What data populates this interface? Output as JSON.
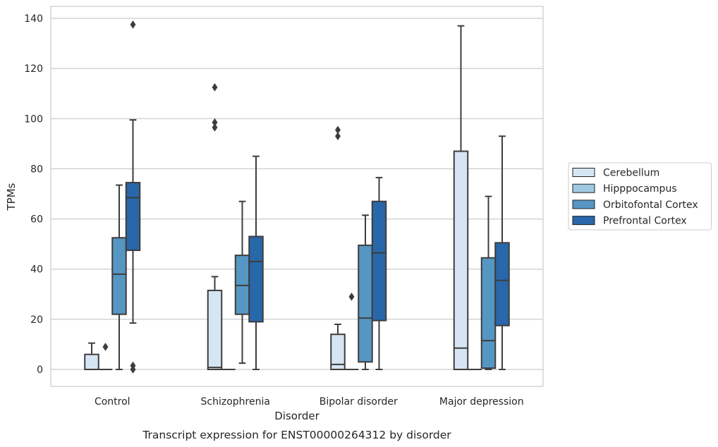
{
  "chart_data": {
    "type": "box",
    "caption": "Transcript expression for ENST00000264312 by disorder",
    "xlabel": "Disorder",
    "ylabel": "TPMs",
    "ylim": [
      -6.5,
      144
    ],
    "yticks": [
      0,
      20,
      40,
      60,
      80,
      100,
      120,
      140
    ],
    "grid": true,
    "legend_position": "right",
    "categories": [
      "Control",
      "Schizophrenia",
      "Bipolar disorder",
      "Major depression"
    ],
    "series": [
      {
        "name": "Cerebellum",
        "color": "#d6e5f3",
        "boxes": [
          {
            "whisker_low": 0,
            "q1": 0,
            "median": 0,
            "q3": 6,
            "whisker_high": 10.5,
            "outliers": []
          },
          {
            "whisker_low": 0,
            "q1": 0,
            "median": 0.8,
            "q3": 31.5,
            "whisker_high": 37,
            "outliers": [
              96.5,
              98.5,
              112.5
            ]
          },
          {
            "whisker_low": 0,
            "q1": 0,
            "median": 2,
            "q3": 14,
            "whisker_high": 18,
            "outliers": [
              93,
              95.5
            ]
          },
          {
            "whisker_low": 0,
            "q1": 0,
            "median": 8.5,
            "q3": 87,
            "whisker_high": 137,
            "outliers": []
          }
        ]
      },
      {
        "name": "Hipppocampus",
        "color": "#9ec9e1",
        "boxes": [
          {
            "whisker_low": 0,
            "q1": 0,
            "median": 0,
            "q3": 0,
            "whisker_high": 0,
            "outliers": [
              9
            ]
          },
          {
            "whisker_low": 0,
            "q1": 0,
            "median": 0,
            "q3": 0,
            "whisker_high": 0,
            "outliers": []
          },
          {
            "whisker_low": 0,
            "q1": 0,
            "median": 0,
            "q3": 0,
            "whisker_high": 0,
            "outliers": [
              29
            ]
          },
          {
            "whisker_low": 0,
            "q1": 0,
            "median": 0,
            "q3": 0,
            "whisker_high": 0,
            "outliers": []
          }
        ]
      },
      {
        "name": "Orbitofontal Cortex",
        "color": "#5696c2",
        "boxes": [
          {
            "whisker_low": 0,
            "q1": 22,
            "median": 38,
            "q3": 52.5,
            "whisker_high": 73.5,
            "outliers": []
          },
          {
            "whisker_low": 2.5,
            "q1": 22,
            "median": 33.5,
            "q3": 45.5,
            "whisker_high": 67,
            "outliers": []
          },
          {
            "whisker_low": 0,
            "q1": 3,
            "median": 20.5,
            "q3": 49.5,
            "whisker_high": 61.5,
            "outliers": []
          },
          {
            "whisker_low": 0,
            "q1": 0.5,
            "median": 11.5,
            "q3": 44.5,
            "whisker_high": 69,
            "outliers": []
          }
        ]
      },
      {
        "name": "Prefrontal Cortex",
        "color": "#2867aa",
        "boxes": [
          {
            "whisker_low": 18.5,
            "q1": 47.5,
            "median": 68.5,
            "q3": 74.5,
            "whisker_high": 99.5,
            "outliers": [
              0,
              1.5,
              137.5
            ]
          },
          {
            "whisker_low": 0,
            "q1": 19,
            "median": 43,
            "q3": 53,
            "whisker_high": 85,
            "outliers": []
          },
          {
            "whisker_low": 0,
            "q1": 19.5,
            "median": 46.5,
            "q3": 67,
            "whisker_high": 76.5,
            "outliers": []
          },
          {
            "whisker_low": 0,
            "q1": 17.5,
            "median": 35.5,
            "q3": 50.5,
            "whisker_high": 93,
            "outliers": []
          }
        ]
      }
    ]
  }
}
